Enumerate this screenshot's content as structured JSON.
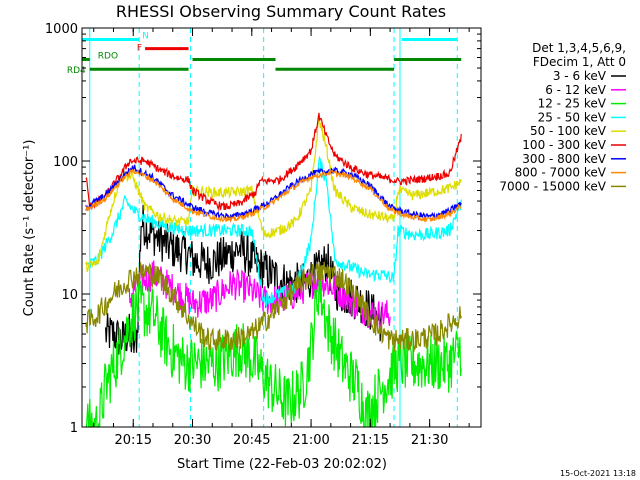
{
  "chart_data": {
    "type": "line",
    "title": "RHESSI Observing Summary Count Rates",
    "xlabel": "Start Time (22-Feb-03 20:02:02)",
    "ylabel": "Count Rate (s⁻¹ detector⁻¹)",
    "yscale": "log",
    "ylim": [
      1,
      1000
    ],
    "xlim": [
      "20:02:02",
      "21:43:00"
    ],
    "x_ticks": [
      "20:15",
      "20:30",
      "20:45",
      "21:00",
      "21:15",
      "21:30"
    ],
    "y_ticks": [
      "1",
      "10",
      "100",
      "1000"
    ],
    "legend": {
      "placement": "right",
      "header": [
        "Det 1,3,4,5,6,9,",
        "FDecim 1, Att 0"
      ]
    },
    "series": [
      {
        "name": "3 - 6 keV",
        "color": "#000000",
        "points": [
          [
            "20:08",
            5
          ],
          [
            "20:10",
            5
          ],
          [
            "20:12",
            4.5
          ],
          [
            "20:14",
            5
          ],
          [
            "20:15",
            4
          ],
          [
            "20:16",
            5
          ],
          [
            "20:17",
            35
          ],
          [
            "20:20",
            28
          ],
          [
            "20:25",
            22
          ],
          [
            "20:29",
            20
          ],
          [
            "20:30",
            18
          ],
          [
            "20:34",
            17
          ],
          [
            "20:38",
            19
          ],
          [
            "20:42",
            22
          ],
          [
            "20:46",
            17
          ],
          [
            "20:50",
            14
          ],
          [
            "20:54",
            12
          ],
          [
            "20:58",
            12
          ],
          [
            "21:02",
            15
          ],
          [
            "21:04",
            18
          ],
          [
            "21:06",
            11
          ],
          [
            "21:08",
            10
          ],
          [
            "21:12",
            9
          ],
          [
            "21:16",
            7
          ],
          [
            "21:18",
            6
          ]
        ]
      },
      {
        "name": "6 - 12 keV",
        "color": "#ff00ff",
        "points": [
          [
            "20:14",
            9
          ],
          [
            "20:16",
            12
          ],
          [
            "20:20",
            14
          ],
          [
            "20:25",
            11
          ],
          [
            "20:29",
            9
          ],
          [
            "20:30",
            8.5
          ],
          [
            "20:35",
            9
          ],
          [
            "20:40",
            12
          ],
          [
            "20:44",
            11
          ],
          [
            "20:48",
            9
          ],
          [
            "20:52",
            9
          ],
          [
            "20:56",
            10
          ],
          [
            "21:00",
            12
          ],
          [
            "21:02",
            13
          ],
          [
            "21:04",
            12
          ],
          [
            "21:08",
            10
          ],
          [
            "21:12",
            8
          ],
          [
            "21:16",
            7
          ],
          [
            "21:20",
            7
          ]
        ]
      },
      {
        "name": "12 - 25 keV",
        "color": "#00ee00",
        "points": [
          [
            "20:03",
            1
          ],
          [
            "20:06",
            1
          ],
          [
            "20:08",
            2
          ],
          [
            "20:12",
            4
          ],
          [
            "20:14",
            6
          ],
          [
            "20:16",
            8
          ],
          [
            "20:20",
            7
          ],
          [
            "20:24",
            4
          ],
          [
            "20:28",
            3
          ],
          [
            "20:30",
            3
          ],
          [
            "20:36",
            3
          ],
          [
            "20:42",
            4
          ],
          [
            "20:46",
            3
          ],
          [
            "20:50",
            2
          ],
          [
            "20:54",
            1.5
          ],
          [
            "20:58",
            2
          ],
          [
            "21:00",
            4
          ],
          [
            "21:02",
            12
          ],
          [
            "21:04",
            6
          ],
          [
            "21:08",
            3
          ],
          [
            "21:12",
            2
          ],
          [
            "21:14",
            1.2
          ],
          [
            "21:18",
            2
          ],
          [
            "21:22",
            3
          ],
          [
            "21:26",
            3
          ],
          [
            "21:30",
            3
          ],
          [
            "21:35",
            3
          ],
          [
            "21:38",
            4
          ]
        ]
      },
      {
        "name": "25 - 50 keV",
        "color": "#00ffff",
        "points": [
          [
            "20:03",
            16
          ],
          [
            "20:06",
            18
          ],
          [
            "20:10",
            30
          ],
          [
            "20:13",
            50
          ],
          [
            "20:16",
            40
          ],
          [
            "20:20",
            35
          ],
          [
            "20:24",
            32
          ],
          [
            "20:29",
            30
          ],
          [
            "20:30",
            30
          ],
          [
            "20:35",
            30
          ],
          [
            "20:40",
            30
          ],
          [
            "20:45",
            30
          ],
          [
            "20:48",
            9
          ],
          [
            "20:52",
            10
          ],
          [
            "20:56",
            11
          ],
          [
            "21:00",
            25
          ],
          [
            "21:02",
            100
          ],
          [
            "21:04",
            70
          ],
          [
            "21:06",
            18
          ],
          [
            "21:10",
            16
          ],
          [
            "21:14",
            14
          ],
          [
            "21:18",
            14
          ],
          [
            "21:21",
            13
          ],
          [
            "21:22",
            30
          ],
          [
            "21:26",
            28
          ],
          [
            "21:30",
            28
          ],
          [
            "21:35",
            30
          ],
          [
            "21:38",
            48
          ]
        ]
      },
      {
        "name": "50 - 100 keV",
        "color": "#dddd00",
        "points": [
          [
            "20:03",
            16
          ],
          [
            "20:06",
            17
          ],
          [
            "20:09",
            40
          ],
          [
            "20:12",
            80
          ],
          [
            "20:15",
            75
          ],
          [
            "20:18",
            45
          ],
          [
            "20:22",
            38
          ],
          [
            "20:26",
            35
          ],
          [
            "20:29",
            35
          ],
          [
            "20:30",
            60
          ],
          [
            "20:35",
            58
          ],
          [
            "20:40",
            58
          ],
          [
            "20:45",
            60
          ],
          [
            "20:48",
            28
          ],
          [
            "20:52",
            30
          ],
          [
            "20:56",
            35
          ],
          [
            "21:00",
            60
          ],
          [
            "21:02",
            210
          ],
          [
            "21:04",
            120
          ],
          [
            "21:06",
            60
          ],
          [
            "21:10",
            45
          ],
          [
            "21:14",
            40
          ],
          [
            "21:18",
            38
          ],
          [
            "21:21",
            36
          ],
          [
            "21:22",
            60
          ],
          [
            "21:26",
            55
          ],
          [
            "21:30",
            58
          ],
          [
            "21:35",
            62
          ],
          [
            "21:38",
            70
          ]
        ]
      },
      {
        "name": "100 - 300 keV",
        "color": "#ee0000",
        "points": [
          [
            "20:03",
            78
          ],
          [
            "20:04",
            45
          ],
          [
            "20:08",
            55
          ],
          [
            "20:12",
            80
          ],
          [
            "20:14",
            100
          ],
          [
            "20:18",
            100
          ],
          [
            "20:22",
            85
          ],
          [
            "20:26",
            75
          ],
          [
            "20:29",
            72
          ],
          [
            "20:30",
            60
          ],
          [
            "20:34",
            50
          ],
          [
            "20:38",
            45
          ],
          [
            "20:42",
            48
          ],
          [
            "20:46",
            58
          ],
          [
            "20:47",
            70
          ],
          [
            "20:52",
            72
          ],
          [
            "20:56",
            90
          ],
          [
            "21:00",
            120
          ],
          [
            "21:02",
            220
          ],
          [
            "21:04",
            150
          ],
          [
            "21:06",
            110
          ],
          [
            "21:10",
            90
          ],
          [
            "21:14",
            80
          ],
          [
            "21:18",
            75
          ],
          [
            "21:21",
            72
          ],
          [
            "21:22",
            70
          ],
          [
            "21:26",
            72
          ],
          [
            "21:30",
            75
          ],
          [
            "21:35",
            80
          ],
          [
            "21:38",
            150
          ]
        ]
      },
      {
        "name": "300 - 800 keV",
        "color": "#0000ff",
        "points": [
          [
            "20:03",
            45
          ],
          [
            "20:08",
            55
          ],
          [
            "20:12",
            75
          ],
          [
            "20:15",
            90
          ],
          [
            "20:20",
            75
          ],
          [
            "20:25",
            55
          ],
          [
            "20:30",
            45
          ],
          [
            "20:35",
            40
          ],
          [
            "20:40",
            38
          ],
          [
            "20:45",
            42
          ],
          [
            "20:50",
            50
          ],
          [
            "20:55",
            65
          ],
          [
            "21:00",
            80
          ],
          [
            "21:05",
            85
          ],
          [
            "21:10",
            80
          ],
          [
            "21:15",
            65
          ],
          [
            "21:20",
            45
          ],
          [
            "21:25",
            40
          ],
          [
            "21:30",
            38
          ],
          [
            "21:35",
            42
          ],
          [
            "21:38",
            48
          ]
        ]
      },
      {
        "name": "800 - 7000 keV",
        "color": "#ff8800",
        "points": [
          [
            "20:03",
            43
          ],
          [
            "20:08",
            52
          ],
          [
            "20:12",
            72
          ],
          [
            "20:15",
            85
          ],
          [
            "20:20",
            72
          ],
          [
            "20:25",
            52
          ],
          [
            "20:30",
            42
          ],
          [
            "20:35",
            38
          ],
          [
            "20:40",
            36
          ],
          [
            "20:45",
            40
          ],
          [
            "20:50",
            48
          ],
          [
            "20:55",
            62
          ],
          [
            "21:00",
            76
          ],
          [
            "21:05",
            82
          ],
          [
            "21:10",
            76
          ],
          [
            "21:15",
            62
          ],
          [
            "21:20",
            43
          ],
          [
            "21:25",
            38
          ],
          [
            "21:30",
            36
          ],
          [
            "21:35",
            40
          ],
          [
            "21:38",
            46
          ]
        ]
      },
      {
        "name": "7000 - 15000 keV",
        "color": "#888800",
        "points": [
          [
            "20:03",
            6
          ],
          [
            "20:06",
            7
          ],
          [
            "20:10",
            10
          ],
          [
            "20:14",
            13
          ],
          [
            "20:18",
            15
          ],
          [
            "20:22",
            13
          ],
          [
            "20:26",
            9
          ],
          [
            "20:30",
            6
          ],
          [
            "20:34",
            4.5
          ],
          [
            "20:40",
            4.5
          ],
          [
            "20:45",
            5
          ],
          [
            "20:50",
            7
          ],
          [
            "20:56",
            11
          ],
          [
            "21:00",
            14
          ],
          [
            "21:04",
            15
          ],
          [
            "21:08",
            13
          ],
          [
            "21:12",
            9
          ],
          [
            "21:16",
            6
          ],
          [
            "21:20",
            4.5
          ],
          [
            "21:26",
            4.5
          ],
          [
            "21:32",
            5
          ],
          [
            "21:38",
            7
          ]
        ]
      }
    ],
    "annotations": {
      "top_bars": [
        {
          "label": "N",
          "color": "#00ffff",
          "start": "20:02:02",
          "end": "20:16:30",
          "level": 820
        },
        {
          "label": "",
          "color": "#00ffff",
          "start": "21:23",
          "end": "21:37",
          "level": 820
        },
        {
          "label": "F",
          "color": "#ee0000",
          "start": "20:18",
          "end": "20:29",
          "level": 700
        },
        {
          "label": "RDO",
          "color": "#008800",
          "start": "20:02:02",
          "end": "20:04",
          "level": 580
        },
        {
          "label": "",
          "color": "#008800",
          "start": "20:30",
          "end": "20:51",
          "level": 580
        },
        {
          "label": "",
          "color": "#008800",
          "start": "21:21",
          "end": "21:38",
          "level": 580
        },
        {
          "label": "RD4",
          "color": "#008800",
          "start": "20:04",
          "end": "20:29",
          "level": 490
        },
        {
          "label": "",
          "color": "#008800",
          "start": "20:51",
          "end": "21:21",
          "level": 490
        }
      ],
      "vertical_lines": [
        {
          "time": "20:04",
          "color": "#00ffff",
          "style": "solid"
        },
        {
          "time": "20:16:30",
          "color": "#00ffff",
          "style": "dashed"
        },
        {
          "time": "20:29:30",
          "color": "#00ffff",
          "style": "dashed"
        },
        {
          "time": "20:48",
          "color": "#00ffff",
          "style": "dashed"
        },
        {
          "time": "21:21",
          "color": "#00ffff",
          "style": "dashed"
        },
        {
          "time": "21:22:30",
          "color": "#00ffff",
          "style": "solid"
        },
        {
          "time": "21:37",
          "color": "#00ffff",
          "style": "dashed"
        }
      ]
    },
    "footer": "15-Oct-2021 13:18",
    "colors": {
      "background": "#ffffff",
      "axis": "#000000"
    }
  }
}
